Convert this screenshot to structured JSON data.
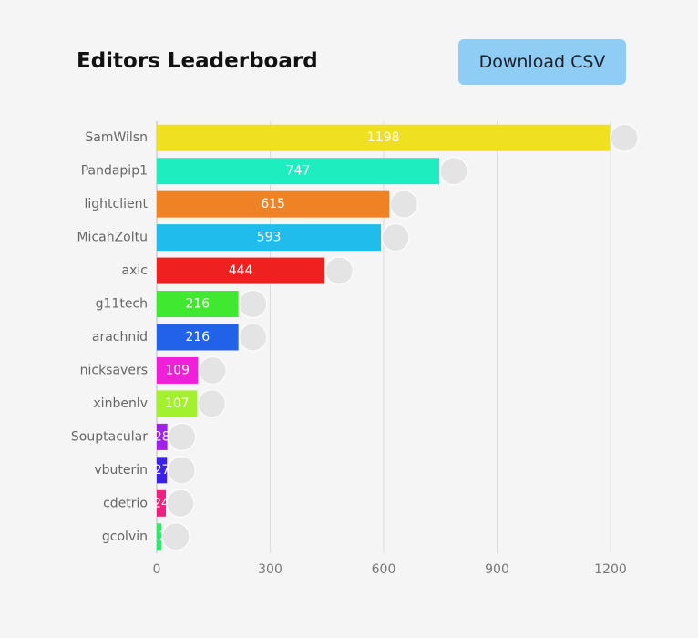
{
  "header": {
    "title": "Editors Leaderboard",
    "button": "Download CSV"
  },
  "chart_data": {
    "type": "bar",
    "orientation": "horizontal",
    "categories": [
      "SamWilsn",
      "Pandapip1",
      "lightclient",
      "MicahZoltu",
      "axic",
      "g11tech",
      "arachnid",
      "nicksavers",
      "xinbenlv",
      "Souptacular",
      "vbuterin",
      "cdetrio",
      "gcolvin"
    ],
    "values": [
      1198,
      747,
      615,
      593,
      444,
      216,
      216,
      109,
      107,
      28,
      27,
      24,
      12
    ],
    "colors": [
      "#efe021",
      "#1eedc0",
      "#ef8224",
      "#20bdec",
      "#ef2020",
      "#40e830",
      "#2262e8",
      "#f020d8",
      "#a2f02e",
      "#a020e8",
      "#3c20e8",
      "#f02080",
      "#30e868"
    ],
    "xlim": [
      0,
      1200
    ],
    "xticks": [
      0,
      300,
      600,
      900,
      1200
    ],
    "grid": true
  }
}
